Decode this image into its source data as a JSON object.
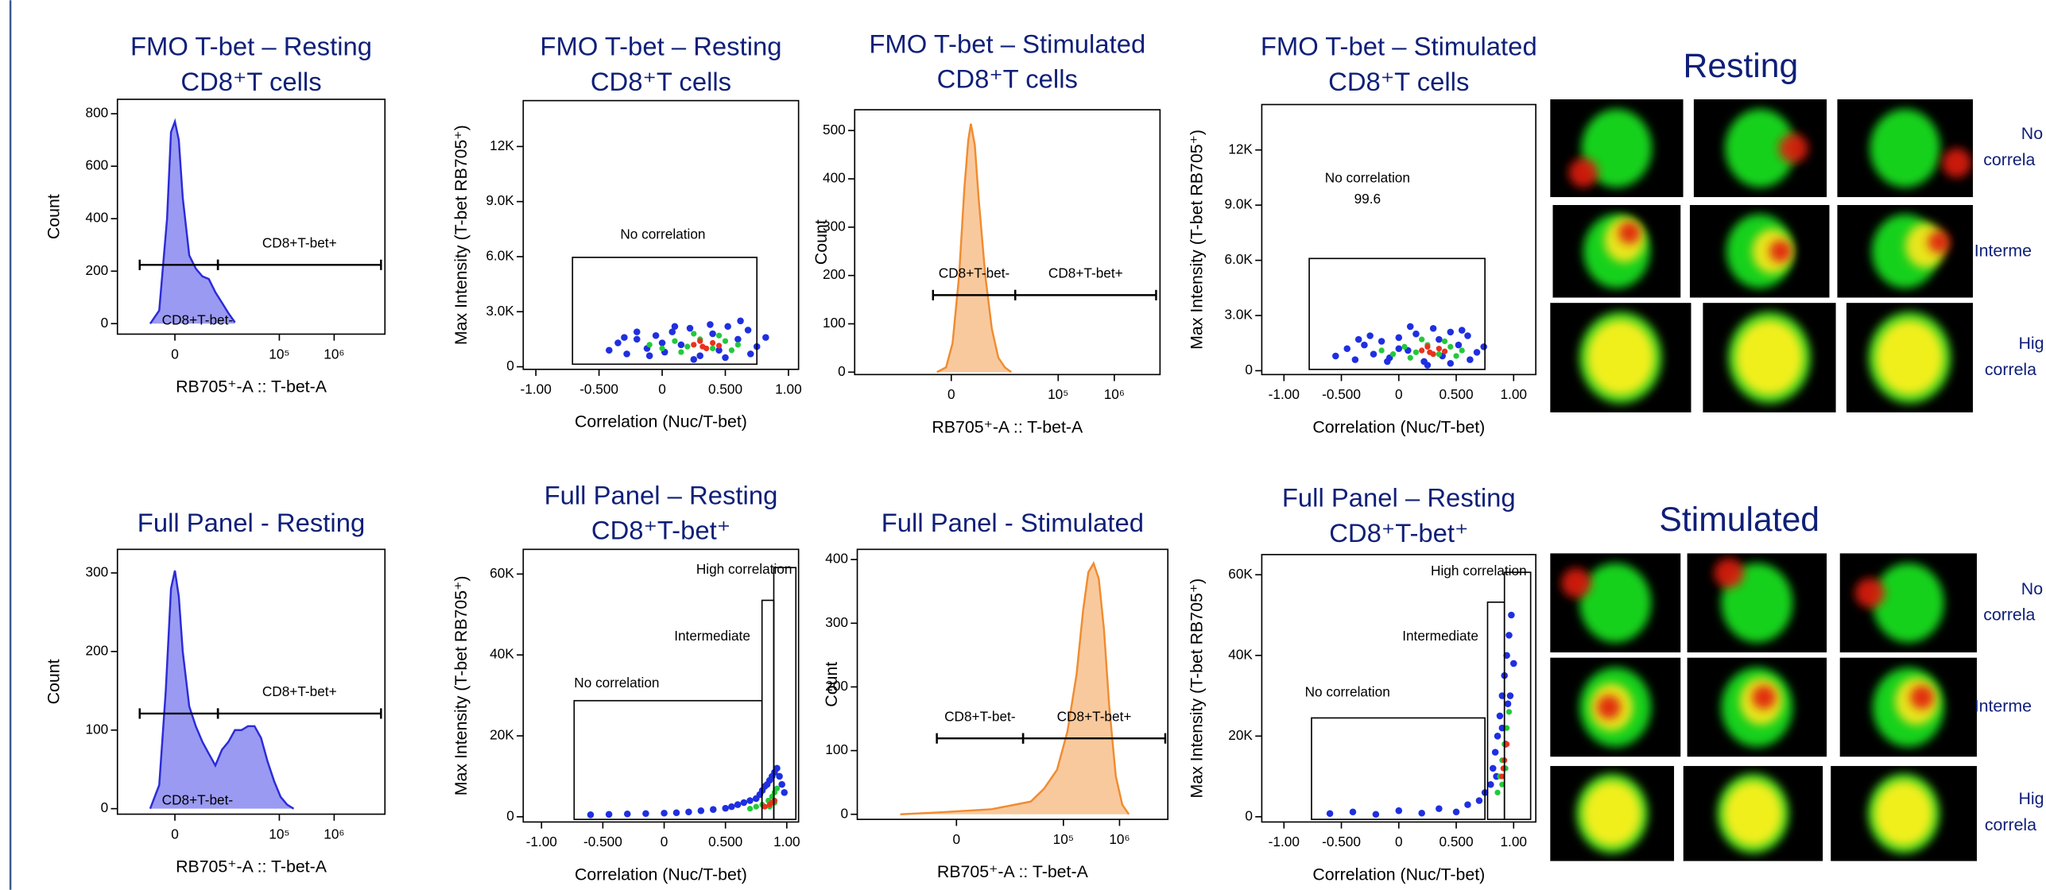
{
  "chart_data": [
    {
      "type": "area",
      "title": [
        "FMO T-bet – Resting",
        "CD8⁺T cells"
      ],
      "x_label": "RB705⁺-A :: T-bet-A",
      "y_label": "Count",
      "xscale": "biex",
      "x": [
        -3075,
        -1760,
        -835,
        -410,
        0,
        410,
        835,
        1595,
        2475,
        3560,
        4875,
        6580,
        8800,
        11650,
        15400
      ],
      "values": [
        0,
        50,
        400,
        730,
        770,
        700,
        480,
        260,
        210,
        180,
        170,
        120,
        80,
        40,
        5
      ],
      "color": "#2b2bd9",
      "fill": "#9a9af2",
      "xlim": [
        -13800,
        8440000
      ],
      "ylim": [
        -40,
        855
      ],
      "xticks": [
        0,
        {
          "value": 100000,
          "label": "10⁵"
        },
        {
          "value": 1000000,
          "label": "10⁶"
        }
      ],
      "yticks": [
        0,
        200,
        400,
        600,
        800
      ],
      "gates": [
        {
          "label": "CD8+T-bet-",
          "x": [
            -5180,
            7370
          ]
        },
        {
          "label": "CD8+T-bet+",
          "x": [
            7370,
            7160000
          ]
        }
      ]
    },
    {
      "type": "scatter",
      "title": [
        "FMO T-bet – Resting",
        "CD8⁺T cells"
      ],
      "x_label": "Correlation (Nuc/T-bet)",
      "y_label": "Max Intensity (T-bet RB705⁺)",
      "xlim": [
        -1.1,
        1.08
      ],
      "ylim": [
        -140,
        14500
      ],
      "xticks": [
        {
          "value": -1,
          "label": "-1.00"
        },
        {
          "value": -0.5,
          "label": "-0.500"
        },
        0,
        {
          "value": 0.5,
          "label": "0.500"
        },
        {
          "value": 1,
          "label": "1.00"
        }
      ],
      "yticks": [
        0,
        {
          "value": 3000,
          "label": "3.0K"
        },
        {
          "value": 6000,
          "label": "6.0K"
        },
        {
          "value": 9000,
          "label": "9.0K"
        },
        {
          "value": 12000,
          "label": "12K"
        }
      ],
      "series": [
        {
          "color": "#1f2fe0",
          "x": [
            -0.42,
            -0.35,
            -0.28,
            -0.2,
            -0.12,
            -0.05,
            0.02,
            0.08,
            0.15,
            0.22,
            0.3,
            0.38,
            0.45,
            0.52,
            0.6,
            0.68,
            0.75,
            0.82,
            -0.3,
            -0.1,
            0.1,
            0.5,
            0.7,
            0.0,
            0.25,
            0.62,
            0.4,
            -0.2
          ],
          "values": [
            900,
            1300,
            700,
            1500,
            1000,
            1700,
            800,
            1900,
            1200,
            2100,
            600,
            2300,
            900,
            2200,
            1500,
            2000,
            1100,
            1600,
            1600,
            600,
            2200,
            500,
            700,
            1300,
            400,
            2500,
            1800,
            1900
          ]
        },
        {
          "color": "#22c93a",
          "x": [
            -0.1,
            0.0,
            0.1,
            0.2,
            0.3,
            0.4,
            0.5,
            0.6,
            0.15,
            0.45,
            0.55,
            0.25
          ],
          "values": [
            1200,
            1000,
            1400,
            1100,
            1500,
            1000,
            1400,
            1200,
            800,
            1700,
            900,
            1800
          ]
        },
        {
          "color": "#e8321e",
          "x": [
            0.25,
            0.32,
            0.4,
            0.35,
            0.45,
            0.3
          ],
          "values": [
            1200,
            1100,
            1300,
            1000,
            1150,
            1400
          ]
        }
      ],
      "gates": [
        {
          "label": "No correlation",
          "x": [
            -0.71,
            0.75
          ],
          "y": [
            140,
            5960
          ]
        }
      ]
    },
    {
      "type": "area",
      "title": [
        "FMO T-bet – Stimulated",
        "CD8⁺T cells"
      ],
      "x_label": "RB705⁺-A :: T-bet-A",
      "y_label": "Count",
      "xscale": "biex",
      "x": [
        -1554,
        -537,
        133,
        815,
        1400,
        1880,
        2225,
        2795,
        3420,
        4715,
        6330,
        8390,
        11050,
        14510
      ],
      "values": [
        0,
        10,
        60,
        200,
        380,
        480,
        514,
        470,
        360,
        200,
        90,
        30,
        10,
        0
      ],
      "color": "#f08c30",
      "fill": "#f9c99e",
      "xlim": [
        -65500,
        6520000
      ],
      "ylim": [
        -5,
        543
      ],
      "xticks": [
        0,
        {
          "value": 100000,
          "label": "10⁵"
        },
        {
          "value": 1000000,
          "label": "10⁶"
        }
      ],
      "yticks": [
        0,
        100,
        200,
        300,
        400,
        500
      ],
      "gates": [
        {
          "label": "CD8+T-bet-",
          "x": [
            -2046,
            17080
          ]
        },
        {
          "label": "CD8+T-bet+",
          "x": [
            17080,
            5550000
          ]
        }
      ]
    },
    {
      "type": "scatter",
      "title": [
        "FMO T-bet – Stimulated",
        "CD8⁺T cells"
      ],
      "x_label": "Correlation (Nuc/T-bet)",
      "y_label": "Max Intensity (T-bet RB705⁺)",
      "xlim": [
        -1.193,
        1.193
      ],
      "ylim": [
        -210,
        14470
      ],
      "xticks": [
        {
          "value": -1,
          "label": "-1.00"
        },
        {
          "value": -0.5,
          "label": "-0.500"
        },
        0,
        {
          "value": 0.5,
          "label": "0.500"
        },
        {
          "value": 1,
          "label": "1.00"
        }
      ],
      "yticks": [
        0,
        {
          "value": 3000,
          "label": "3.0K"
        },
        {
          "value": 6000,
          "label": "6.0K"
        },
        {
          "value": 9000,
          "label": "9.0K"
        },
        {
          "value": 12000,
          "label": "12K"
        }
      ],
      "series": [
        {
          "color": "#1f2fe0",
          "x": [
            -0.55,
            -0.45,
            -0.38,
            -0.3,
            -0.22,
            -0.15,
            -0.08,
            0.0,
            0.08,
            0.15,
            0.22,
            0.3,
            0.38,
            0.45,
            0.52,
            0.6,
            0.68,
            0.74,
            -0.35,
            -0.1,
            0.1,
            0.45,
            0.62,
            0.0,
            0.25,
            0.55,
            0.35,
            -0.25
          ],
          "values": [
            800,
            1200,
            600,
            1400,
            900,
            1600,
            700,
            1800,
            1100,
            2000,
            500,
            2300,
            800,
            2100,
            1400,
            1900,
            1000,
            1300,
            1700,
            500,
            2400,
            400,
            600,
            1200,
            300,
            2200,
            1700,
            1900
          ]
        },
        {
          "color": "#22c93a",
          "x": [
            -0.15,
            -0.05,
            0.05,
            0.15,
            0.25,
            0.35,
            0.45,
            0.55,
            0.1,
            0.4,
            0.5,
            0.2
          ],
          "values": [
            1100,
            900,
            1300,
            1000,
            1400,
            900,
            1300,
            1100,
            700,
            1600,
            800,
            1700
          ]
        },
        {
          "color": "#e8321e",
          "x": [
            0.2,
            0.27,
            0.35,
            0.3,
            0.4,
            0.25
          ],
          "values": [
            1100,
            1000,
            1200,
            900,
            1050,
            1300
          ]
        }
      ],
      "gates": [
        {
          "label": "No correlation",
          "stat": 99.6,
          "x": [
            -0.78,
            0.75
          ],
          "y": [
            70,
            6100
          ]
        }
      ]
    },
    {
      "type": "area",
      "title": [
        "Full Panel - Resting"
      ],
      "x_label": "RB705⁺-A :: T-bet-A",
      "y_label": "Count",
      "xscale": "biex",
      "x": [
        -3075,
        -1760,
        -979,
        -410,
        0,
        410,
        835,
        1595,
        2475,
        3560,
        4875,
        6580,
        8800,
        11650,
        15400,
        20320,
        26760,
        35230,
        46370,
        61000,
        80400,
        105600,
        139000,
        182800
      ],
      "values": [
        0,
        30,
        150,
        280,
        303,
        270,
        200,
        130,
        105,
        85,
        70,
        55,
        75,
        85,
        100,
        100,
        105,
        105,
        90,
        60,
        35,
        15,
        5,
        0
      ],
      "color": "#2b2bd9",
      "fill": "#9a9af2",
      "xlim": [
        -13800,
        8440000
      ],
      "ylim": [
        -7,
        330
      ],
      "xticks": [
        0,
        {
          "value": 100000,
          "label": "10⁵"
        },
        {
          "value": 1000000,
          "label": "10⁶"
        }
      ],
      "yticks": [
        0,
        100,
        200,
        300
      ],
      "gates": [
        {
          "label": "CD8+T-bet-",
          "x": [
            -5180,
            7370
          ]
        },
        {
          "label": "CD8+T-bet+",
          "x": [
            7370,
            7160000
          ]
        }
      ]
    },
    {
      "type": "scatter",
      "title": [
        "Full Panel – Resting",
        "CD8⁺T-bet⁺"
      ],
      "x_label": "Correlation (Nuc/T-bet)",
      "y_label": "Max Intensity (T-bet RB705⁺)",
      "xlim": [
        -1.149,
        1.096
      ],
      "ylim": [
        -1290,
        66100
      ],
      "xticks": [
        {
          "value": -1,
          "label": "-1.00"
        },
        {
          "value": -0.5,
          "label": "-0.500"
        },
        0,
        {
          "value": 0.5,
          "label": "0.500"
        },
        {
          "value": 1,
          "label": "1.00"
        }
      ],
      "yticks": [
        0,
        {
          "value": 20000,
          "label": "20K"
        },
        {
          "value": 40000,
          "label": "40K"
        },
        {
          "value": 60000,
          "label": "60K"
        }
      ],
      "series": [
        {
          "color": "#1f2fe0",
          "x": [
            -0.6,
            -0.45,
            -0.3,
            -0.15,
            0,
            0.1,
            0.2,
            0.3,
            0.4,
            0.5,
            0.55,
            0.6,
            0.65,
            0.7,
            0.75,
            0.78,
            0.8,
            0.82,
            0.84,
            0.86,
            0.88,
            0.9,
            0.92,
            0.94,
            0.96,
            0.98
          ],
          "values": [
            500,
            600,
            700,
            800,
            900,
            1000,
            1200,
            1500,
            1800,
            2100,
            2500,
            3000,
            3500,
            4000,
            4500,
            5500,
            6500,
            7500,
            8000,
            9000,
            10000,
            11000,
            12000,
            10000,
            8000,
            6000
          ]
        },
        {
          "color": "#22c93a",
          "x": [
            0.7,
            0.75,
            0.8,
            0.85,
            0.88,
            0.9,
            0.92,
            0.86,
            0.9
          ],
          "values": [
            2000,
            2500,
            3000,
            4000,
            5000,
            6000,
            7000,
            2500,
            3500
          ]
        },
        {
          "color": "#e8321e",
          "x": [
            0.82,
            0.86,
            0.88,
            0.9
          ],
          "values": [
            2500,
            3000,
            3500,
            4000
          ]
        }
      ],
      "gates": [
        {
          "label": "No correlation",
          "x": [
            -0.734,
            0.798
          ],
          "y": [
            -650,
            28700
          ]
        },
        {
          "label": "Intermediate",
          "x": [
            0.798,
            0.894
          ],
          "y": [
            -650,
            53500
          ]
        },
        {
          "label": "High correlation",
          "x": [
            0.894,
            1.074
          ],
          "y": [
            -650,
            61600
          ]
        }
      ]
    },
    {
      "type": "area",
      "title": [
        "Full Panel - Stimulated"
      ],
      "x_label": "RB705⁺-A :: T-bet-A",
      "y_label": "Count",
      "xscale": "biex",
      "x": [
        -12330,
        -1880,
        4980,
        26270,
        44970,
        77200,
        118000,
        171800,
        224400,
        278100,
        344600,
        426800,
        528600,
        654900,
        856600,
        1120000,
        1464000
      ],
      "values": [
        0,
        3,
        8,
        20,
        40,
        70,
        130,
        220,
        320,
        380,
        394,
        370,
        290,
        170,
        60,
        15,
        0
      ],
      "color": "#f08c30",
      "fill": "#f9c99e",
      "xlim": [
        -72700,
        7250000
      ],
      "ylim": [
        -8,
        416
      ],
      "xticks": [
        0,
        {
          "value": 100000,
          "label": "10⁵"
        },
        {
          "value": 1000000,
          "label": "10⁶"
        }
      ],
      "yticks": [
        0,
        100,
        200,
        300,
        400
      ],
      "gates": [
        {
          "label": "CD8+T-bet-",
          "x": [
            -2226,
            19050
          ]
        },
        {
          "label": "CD8+T-bet+",
          "x": [
            19050,
            6520000
          ]
        }
      ]
    },
    {
      "type": "scatter",
      "title": [
        "Full Panel – Resting",
        "CD8⁺T-bet⁺"
      ],
      "x_label": "Correlation (Nuc/T-bet)",
      "y_label": "Max Intensity (T-bet RB705⁺)",
      "xlim": [
        -1.193,
        1.193
      ],
      "ylim": [
        -1300,
        65000
      ],
      "xticks": [
        {
          "value": -1,
          "label": "-1.00"
        },
        {
          "value": -0.5,
          "label": "-0.500"
        },
        0,
        {
          "value": 0.5,
          "label": "0.500"
        },
        {
          "value": 1,
          "label": "1.00"
        }
      ],
      "yticks": [
        0,
        {
          "value": 20000,
          "label": "20K"
        },
        {
          "value": 40000,
          "label": "40K"
        },
        {
          "value": 60000,
          "label": "60K"
        }
      ],
      "series": [
        {
          "color": "#1f2fe0",
          "x": [
            -0.6,
            -0.4,
            -0.2,
            0,
            0.2,
            0.35,
            0.5,
            0.6,
            0.7,
            0.75,
            0.8,
            0.82,
            0.84,
            0.86,
            0.88,
            0.9,
            0.92,
            0.94,
            0.96,
            0.98,
            1.0,
            0.95,
            0.9,
            0.85,
            0.97,
            0.93
          ],
          "values": [
            800,
            1200,
            600,
            1500,
            900,
            2000,
            1200,
            3000,
            4000,
            6000,
            8000,
            12000,
            16000,
            20000,
            25000,
            30000,
            35000,
            40000,
            45000,
            50000,
            38000,
            28000,
            22000,
            10000,
            30000,
            18000
          ]
        },
        {
          "color": "#22c93a",
          "x": [
            0.86,
            0.88,
            0.9,
            0.92,
            0.94,
            0.96,
            0.9,
            0.93
          ],
          "values": [
            6000,
            10000,
            14000,
            18000,
            22000,
            26000,
            8000,
            12000
          ]
        },
        {
          "color": "#e8321e",
          "x": [
            0.9,
            0.92,
            0.94,
            0.91
          ],
          "values": [
            10000,
            14000,
            18000,
            12000
          ]
        }
      ],
      "gates": [
        {
          "label": "No correlation",
          "x": [
            -0.76,
            0.75
          ],
          "y": [
            -650,
            24500
          ]
        },
        {
          "label": "Intermediate",
          "x": [
            0.773,
            0.92
          ],
          "y": [
            -650,
            53200
          ]
        },
        {
          "label": "High correlation",
          "x": [
            0.92,
            1.148
          ],
          "y": [
            -650,
            60600
          ]
        }
      ]
    }
  ],
  "image_panels": [
    {
      "title": "Resting",
      "row_labels": [
        [
          "No",
          "correla"
        ],
        [
          "Interme"
        ],
        [
          "Hig",
          "correla"
        ]
      ]
    },
    {
      "title": "Stimulated",
      "row_labels": [
        [
          "No",
          "correla"
        ],
        [
          "Interme"
        ],
        [
          "Hig",
          "correla"
        ]
      ]
    }
  ]
}
